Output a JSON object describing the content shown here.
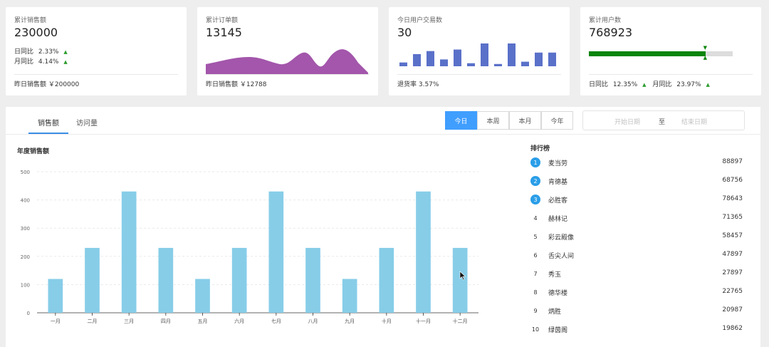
{
  "cards": {
    "sales": {
      "title": "累计销售额",
      "value": "230000",
      "day_label": "日同比",
      "day_value": "2.33%",
      "month_label": "月同比",
      "month_value": "4.14%",
      "footer": "昨日销售额 ￥200000"
    },
    "orders": {
      "title": "累计订单额",
      "value": "13145",
      "footer": "昨日销售额 ￥12788"
    },
    "users_today": {
      "title": "今日用户交易数",
      "value": "30",
      "footer": "退货率 3.57%",
      "bars": [
        5,
        16,
        20,
        9,
        22,
        4,
        30,
        3,
        30,
        6,
        18,
        18
      ]
    },
    "users_total": {
      "title": "累计用户数",
      "value": "768923",
      "progress": 0.81,
      "footer_day_label": "日同比",
      "footer_day_value": "12.35%",
      "footer_month_label": "月同比",
      "footer_month_value": "23.97%"
    }
  },
  "icons": {
    "arrow_up": "▲",
    "cursor": "mouse-pointer-icon"
  },
  "tabs": [
    "销售额",
    "访问量"
  ],
  "range_buttons": [
    "今日",
    "本周",
    "本月",
    "今年"
  ],
  "date_range": {
    "start_placeholder": "开始日期",
    "separator": "至",
    "end_placeholder": "结束日期"
  },
  "chart": {
    "title": "年度销售额"
  },
  "chart_data": {
    "type": "bar",
    "title": "年度销售额",
    "categories": [
      "一月",
      "二月",
      "三月",
      "四月",
      "五月",
      "六月",
      "七月",
      "八月",
      "九月",
      "十月",
      "十一月",
      "十二月"
    ],
    "values": [
      120,
      230,
      430,
      230,
      120,
      230,
      430,
      230,
      120,
      230,
      430,
      230
    ],
    "ylim": [
      0,
      500
    ],
    "yticks": [
      0,
      100,
      200,
      300,
      400,
      500
    ],
    "grid": true,
    "color": "#87cde8"
  },
  "ranking": {
    "title": "排行榜",
    "items": [
      {
        "rank": "1",
        "name": "麦当劳",
        "value": "88897"
      },
      {
        "rank": "2",
        "name": "肯德基",
        "value": "68756"
      },
      {
        "rank": "3",
        "name": "必胜客",
        "value": "78643"
      },
      {
        "rank": "4",
        "name": "赫林记",
        "value": "71365"
      },
      {
        "rank": "5",
        "name": "彩云殿像",
        "value": "58457"
      },
      {
        "rank": "6",
        "name": "舌尖人间",
        "value": "47897"
      },
      {
        "rank": "7",
        "name": "秀玉",
        "value": "27897"
      },
      {
        "rank": "8",
        "name": "德华楼",
        "value": "22765"
      },
      {
        "rank": "9",
        "name": "炳胜",
        "value": "20987"
      },
      {
        "rank": "10",
        "name": "绿茵阁",
        "value": "19862"
      }
    ]
  },
  "colors": {
    "accent": "#409eff",
    "purple": "#a356ab",
    "bar_blue": "#5a71c9",
    "green": "#0a850a",
    "rank_badge": "#2a9ee8"
  }
}
